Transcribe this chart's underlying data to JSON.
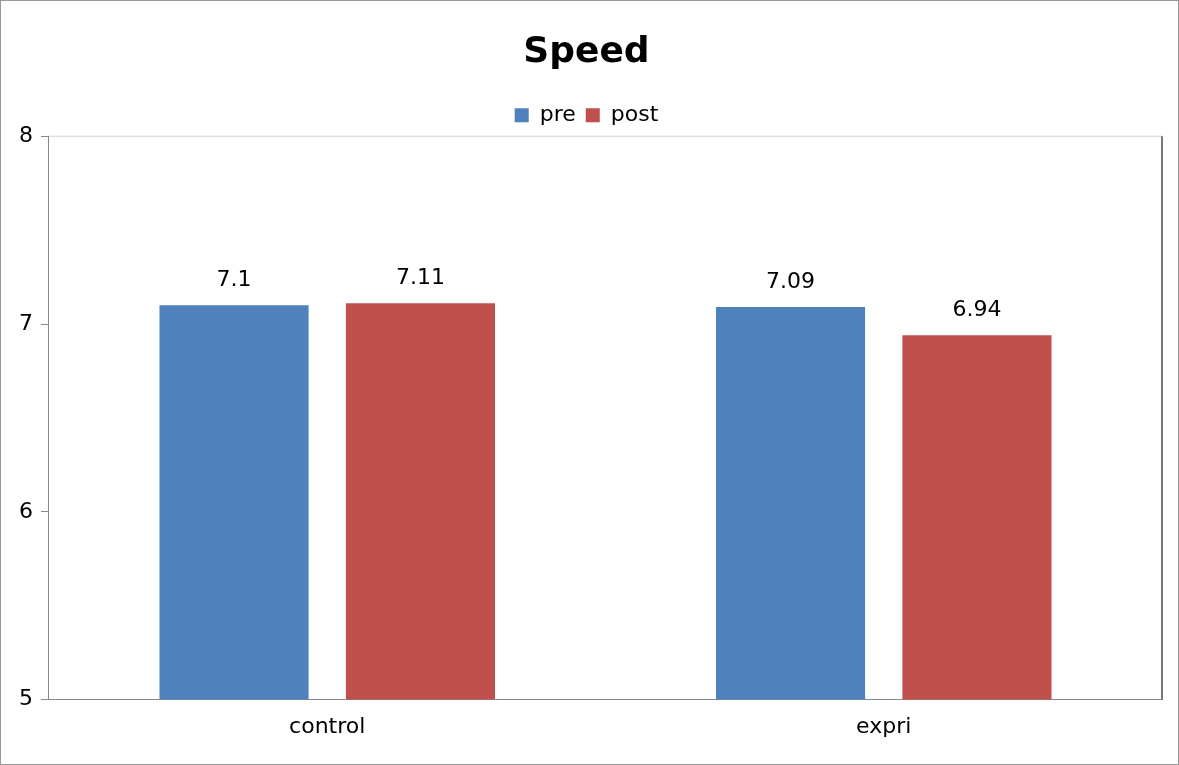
{
  "chart_data": {
    "type": "bar",
    "title": "Speed",
    "categories": [
      "control",
      "expri"
    ],
    "series": [
      {
        "name": "pre",
        "color": "#4f81bd",
        "values": [
          7.1,
          7.09
        ]
      },
      {
        "name": "post",
        "color": "#c0504d",
        "values": [
          7.11,
          6.94
        ]
      }
    ],
    "ylim": [
      5,
      8
    ],
    "yticks": [
      5,
      6,
      7,
      8
    ],
    "grid": false,
    "legend": "top",
    "data_labels": true
  }
}
